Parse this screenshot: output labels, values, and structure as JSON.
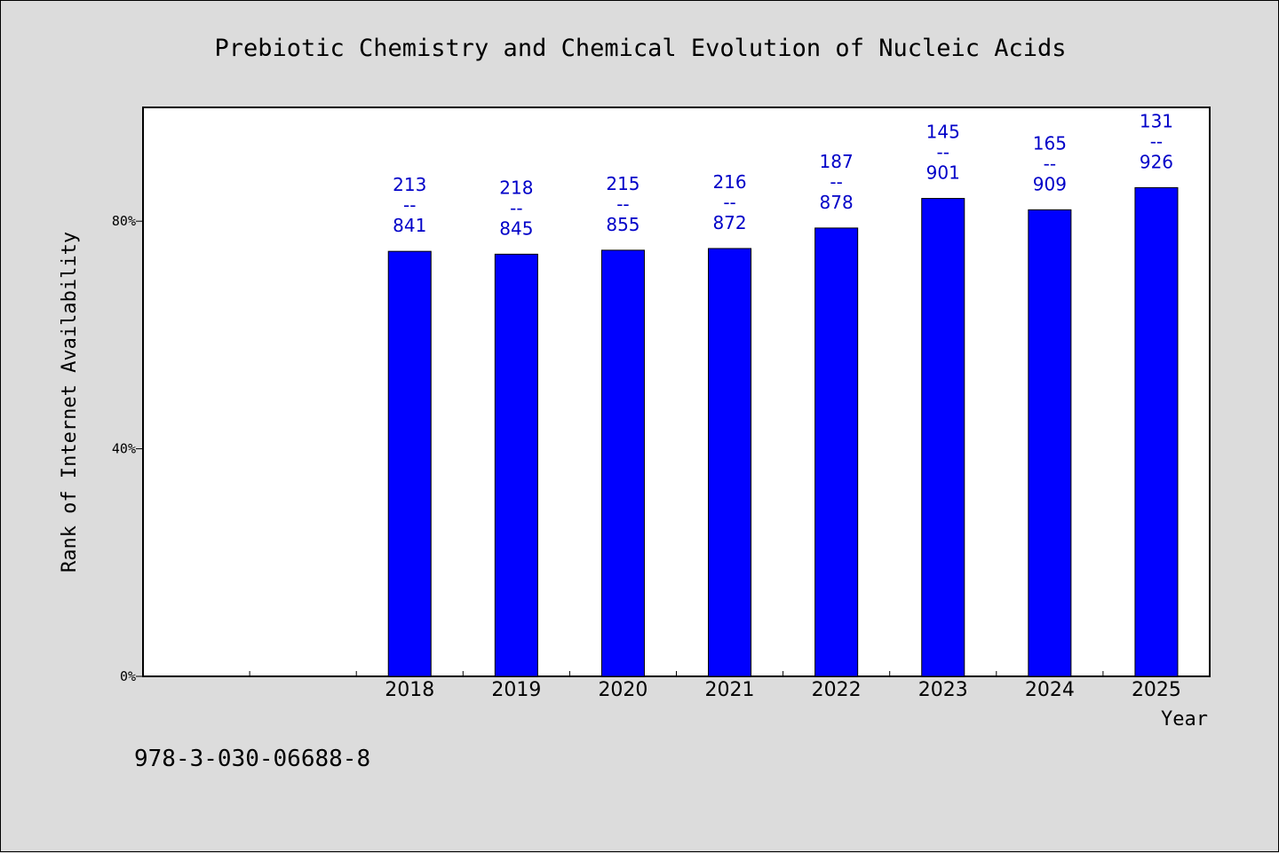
{
  "chart_data": {
    "type": "bar",
    "title": "Prebiotic Chemistry and Chemical Evolution of Nucleic Acids",
    "xlabel": "Year",
    "ylabel": "Rank of Internet Availability",
    "categories": [
      "2018",
      "2019",
      "2020",
      "2021",
      "2022",
      "2023",
      "2024",
      "2025"
    ],
    "values": [
      74.7,
      74.2,
      74.9,
      75.2,
      78.8,
      84.0,
      82.0,
      85.9
    ],
    "labels": [
      {
        "top": "213",
        "sep": "--",
        "bottom": "841"
      },
      {
        "top": "218",
        "sep": "--",
        "bottom": "845"
      },
      {
        "top": "215",
        "sep": "--",
        "bottom": "855"
      },
      {
        "top": "216",
        "sep": "--",
        "bottom": "872"
      },
      {
        "top": "187",
        "sep": "--",
        "bottom": "878"
      },
      {
        "top": "145",
        "sep": "--",
        "bottom": "901"
      },
      {
        "top": "165",
        "sep": "--",
        "bottom": "909"
      },
      {
        "top": "131",
        "sep": "--",
        "bottom": "926"
      }
    ],
    "yticks": [
      {
        "value": 0,
        "label": "0%"
      },
      {
        "value": 40,
        "label": "40%"
      },
      {
        "value": 80,
        "label": "80%"
      }
    ],
    "ylim": [
      0,
      100
    ],
    "x_slots": 10,
    "first_category_slot": 2,
    "grid": false,
    "legend": "none",
    "bar_color": "#0000ff",
    "label_color": "#0000c8"
  },
  "footnote": "978-3-030-06688-8"
}
